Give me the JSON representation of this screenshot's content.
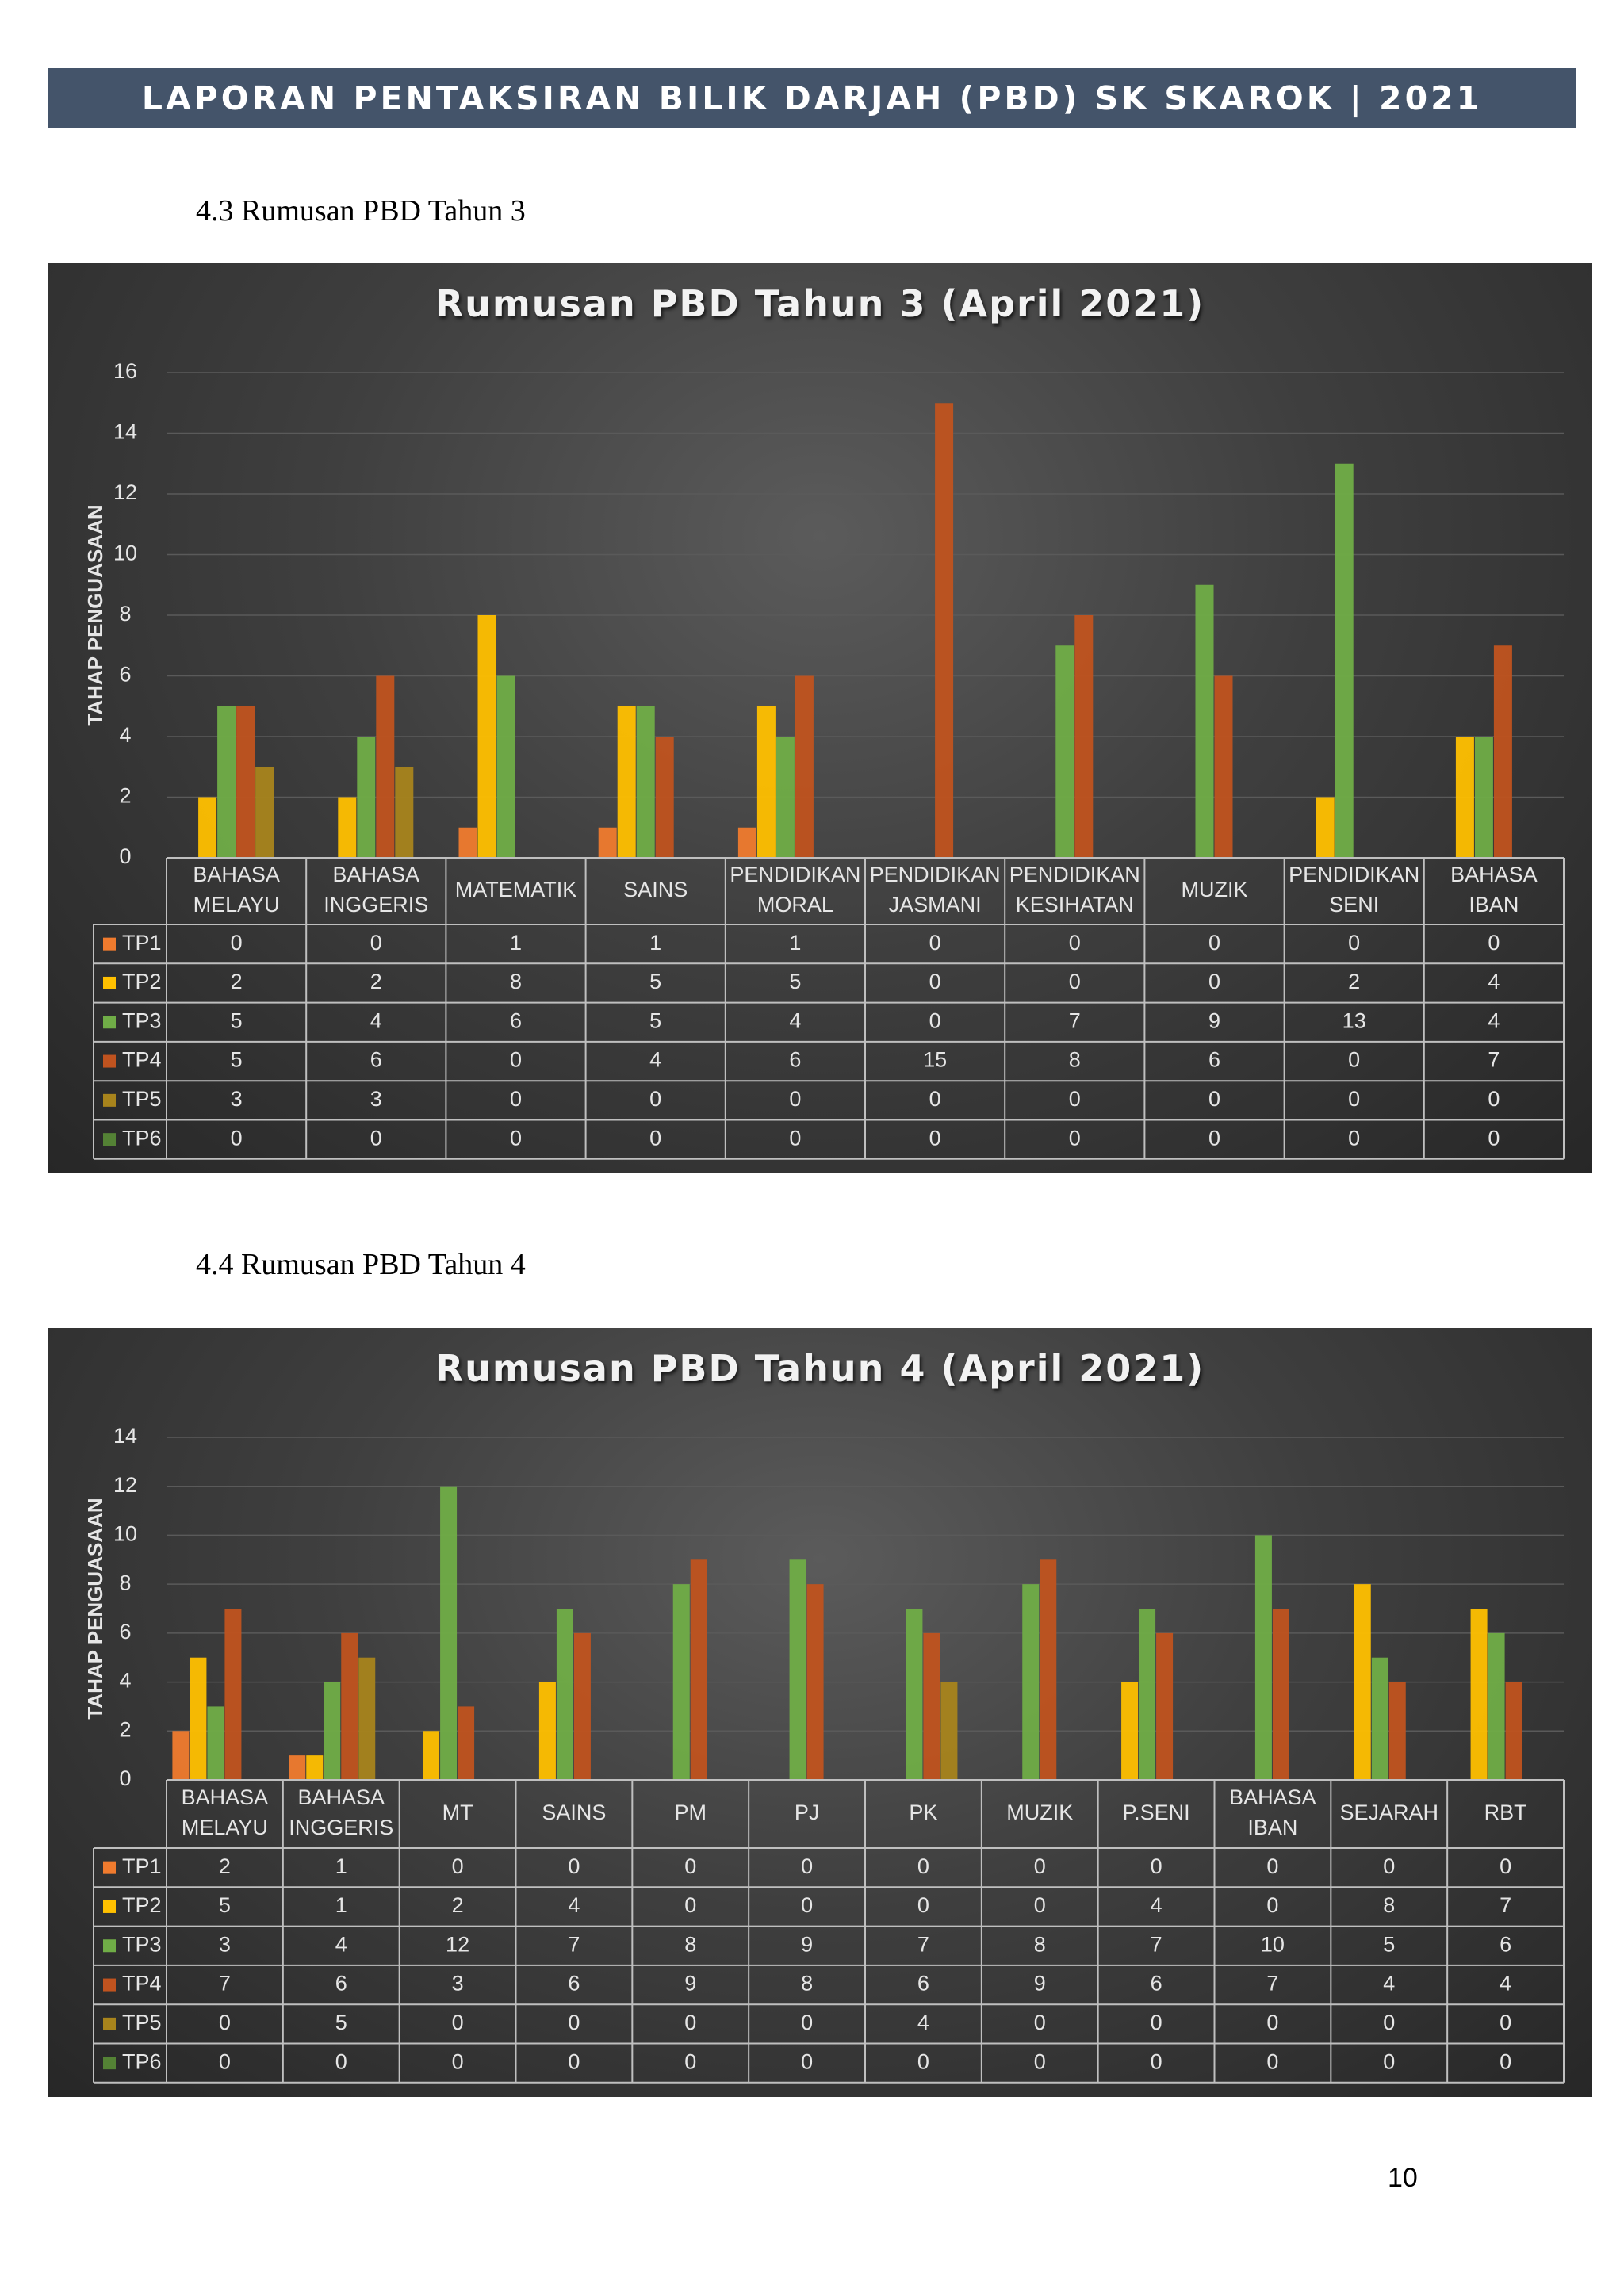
{
  "header": {
    "title": "LAPORAN PENTAKSIRAN BILIK DARJAH (PBD) SK SKAROK | 2021"
  },
  "sections": [
    {
      "heading": "4.3 Rumusan  PBD  Tahun  3"
    },
    {
      "heading": "4.4 Rumusan  PBD  Tahun  4"
    }
  ],
  "page_number": "10",
  "colors": {
    "TP1": "#f07b2e",
    "TP2": "#ffc000",
    "TP3": "#70ad47",
    "TP4": "#c0531f",
    "TP5": "#a8841c",
    "TP6": "#548235",
    "panel_text": "#e6e6e6",
    "grid": "#5a5a5a"
  },
  "chart_data": [
    {
      "type": "bar",
      "title": "Rumusan  PBD  Tahun  3  (April  2021)",
      "ylabel": "TAHAP PENGUASAAN",
      "ylim": [
        0,
        16
      ],
      "yticks": [
        0,
        2,
        4,
        6,
        8,
        10,
        12,
        14,
        16
      ],
      "grid": true,
      "legend": "data-table",
      "categories": [
        [
          "BAHASA",
          "MELAYU"
        ],
        [
          "BAHASA",
          "INGGERIS"
        ],
        [
          "MATEMATIK"
        ],
        [
          "SAINS"
        ],
        [
          "PENDIDIKAN",
          "MORAL"
        ],
        [
          "PENDIDIKAN",
          "JASMANI"
        ],
        [
          "PENDIDIKAN",
          "KESIHATAN"
        ],
        [
          "MUZIK"
        ],
        [
          "PENDIDIKAN",
          "SENI"
        ],
        [
          "BAHASA",
          "IBAN"
        ]
      ],
      "series": [
        {
          "name": "TP1",
          "values": [
            0,
            0,
            1,
            1,
            1,
            0,
            0,
            0,
            0,
            0
          ]
        },
        {
          "name": "TP2",
          "values": [
            2,
            2,
            8,
            5,
            5,
            0,
            0,
            0,
            2,
            4
          ]
        },
        {
          "name": "TP3",
          "values": [
            5,
            4,
            6,
            5,
            4,
            0,
            7,
            9,
            13,
            4
          ]
        },
        {
          "name": "TP4",
          "values": [
            5,
            6,
            0,
            4,
            6,
            15,
            8,
            6,
            0,
            7
          ]
        },
        {
          "name": "TP5",
          "values": [
            3,
            3,
            0,
            0,
            0,
            0,
            0,
            0,
            0,
            0
          ]
        },
        {
          "name": "TP6",
          "values": [
            0,
            0,
            0,
            0,
            0,
            0,
            0,
            0,
            0,
            0
          ]
        }
      ]
    },
    {
      "type": "bar",
      "title": "Rumusan  PBD  Tahun  4  (April  2021)",
      "ylabel": "TAHAP PENGUASAAN",
      "ylim": [
        0,
        14
      ],
      "yticks": [
        0,
        2,
        4,
        6,
        8,
        10,
        12,
        14
      ],
      "grid": true,
      "legend": "data-table",
      "categories": [
        [
          "BAHASA",
          "MELAYU"
        ],
        [
          "BAHASA",
          "INGGERIS"
        ],
        [
          "MT"
        ],
        [
          "SAINS"
        ],
        [
          "PM"
        ],
        [
          "PJ"
        ],
        [
          "PK"
        ],
        [
          "MUZIK"
        ],
        [
          "P.SENI"
        ],
        [
          "BAHASA",
          "IBAN"
        ],
        [
          "SEJARAH"
        ],
        [
          "RBT"
        ]
      ],
      "series": [
        {
          "name": "TP1",
          "values": [
            2,
            1,
            0,
            0,
            0,
            0,
            0,
            0,
            0,
            0,
            0,
            0
          ]
        },
        {
          "name": "TP2",
          "values": [
            5,
            1,
            2,
            4,
            0,
            0,
            0,
            0,
            4,
            0,
            8,
            7
          ]
        },
        {
          "name": "TP3",
          "values": [
            3,
            4,
            12,
            7,
            8,
            9,
            7,
            8,
            7,
            10,
            5,
            6
          ]
        },
        {
          "name": "TP4",
          "values": [
            7,
            6,
            3,
            6,
            9,
            8,
            6,
            9,
            6,
            7,
            4,
            4
          ]
        },
        {
          "name": "TP5",
          "values": [
            0,
            5,
            0,
            0,
            0,
            0,
            4,
            0,
            0,
            0,
            0,
            0
          ]
        },
        {
          "name": "TP6",
          "values": [
            0,
            0,
            0,
            0,
            0,
            0,
            0,
            0,
            0,
            0,
            0,
            0
          ]
        }
      ]
    }
  ]
}
